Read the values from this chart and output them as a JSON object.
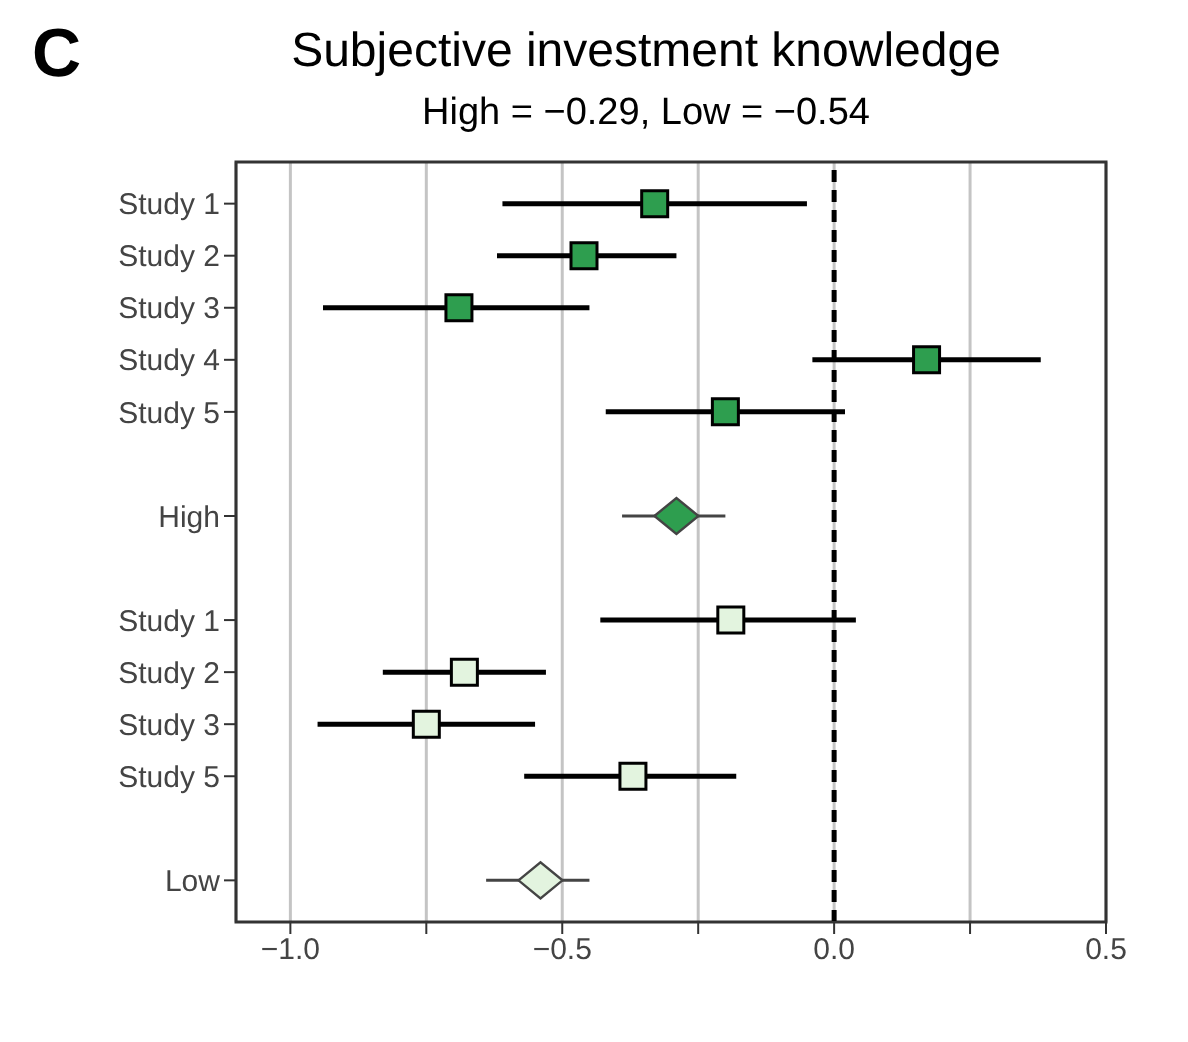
{
  "chart_data": {
    "type": "scatter",
    "orientation": "horizontal",
    "title": "Subjective investment knowledge",
    "subtitle": "High = −0.29, Low = −0.54",
    "annotations": [
      "C"
    ],
    "categories": [
      "Study 1",
      "Study 2",
      "Study 3",
      "Study 4",
      "Study 5",
      null,
      "High",
      null,
      "Study 1",
      "Study 2",
      "Study 3",
      "Study 5",
      null,
      "Low"
    ],
    "series": [
      {
        "color": "#2e9e4f",
        "marker": "square",
        "values": [
          -0.33,
          -0.46,
          -0.69,
          0.17,
          -0.2,
          null,
          null,
          null,
          null,
          null,
          null,
          null,
          null,
          null
        ],
        "errors": [
          [
            -0.61,
            -0.05
          ],
          [
            -0.62,
            -0.29
          ],
          [
            -0.94,
            -0.45
          ],
          [
            -0.04,
            0.38
          ],
          [
            -0.42,
            0.02
          ],
          null,
          null,
          null,
          null,
          null,
          null,
          null,
          null,
          null
        ]
      },
      {
        "color": "#2e9e4f",
        "marker": "diamond",
        "values": [
          null,
          null,
          null,
          null,
          null,
          null,
          -0.29,
          null,
          null,
          null,
          null,
          null,
          null,
          null
        ],
        "errors": [
          null,
          null,
          null,
          null,
          null,
          null,
          [
            -0.39,
            -0.2
          ],
          null,
          null,
          null,
          null,
          null,
          null,
          null
        ]
      },
      {
        "color": "#e3f4df",
        "marker": "square",
        "values": [
          null,
          null,
          null,
          null,
          null,
          null,
          null,
          null,
          -0.19,
          -0.68,
          -0.75,
          -0.37,
          null,
          null
        ],
        "errors": [
          null,
          null,
          null,
          null,
          null,
          null,
          null,
          null,
          [
            -0.43,
            0.04
          ],
          [
            -0.83,
            -0.53
          ],
          [
            -0.95,
            -0.55
          ],
          [
            -0.57,
            -0.18
          ],
          null,
          null
        ]
      },
      {
        "color": "#e3f4df",
        "marker": "diamond",
        "values": [
          null,
          null,
          null,
          null,
          null,
          null,
          null,
          null,
          null,
          null,
          null,
          null,
          null,
          -0.54
        ],
        "errors": [
          null,
          null,
          null,
          null,
          null,
          null,
          null,
          null,
          null,
          null,
          null,
          null,
          null,
          [
            -0.64,
            -0.45
          ]
        ]
      }
    ],
    "xlim": [
      -1.1,
      0.5
    ],
    "xticks": [
      {
        "value": -1,
        "label": "−1.0"
      },
      {
        "value": -0.75,
        "label": null
      },
      {
        "value": -0.5,
        "label": "−0.5"
      },
      {
        "value": -0.25,
        "label": null
      },
      {
        "value": 0,
        "label": "0.0"
      },
      {
        "value": 0.25,
        "label": null
      },
      {
        "value": 0.5,
        "label": "0.5"
      }
    ],
    "grid": "x",
    "ref_lines": [
      {
        "axis": "x",
        "value": 0,
        "color": "#000000",
        "line_style": "dashed"
      }
    ]
  }
}
